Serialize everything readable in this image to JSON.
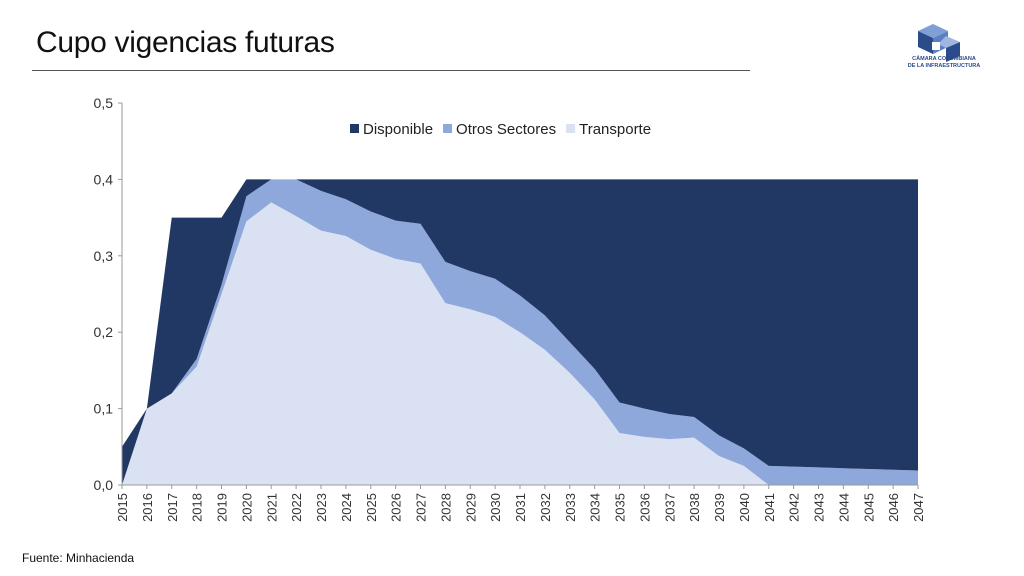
{
  "slide": {
    "title": "Cupo vigencias futuras",
    "source": "Fuente: Minhacienda",
    "logo": {
      "line1": "CÁMARA COLOMBIANA",
      "line2": "DE LA INFRAESTRUCTURA",
      "icon": "cube-logo-icon"
    }
  },
  "colors": {
    "disponible": "#213864",
    "otros_sectores": "#8ea8dc",
    "transporte": "#d9e1f2"
  },
  "chart_data": {
    "type": "area",
    "stacked": true,
    "categories": [
      "2015",
      "2016",
      "2017",
      "2018",
      "2019",
      "2020",
      "2021",
      "2022",
      "2023",
      "2024",
      "2025",
      "2026",
      "2027",
      "2028",
      "2029",
      "2030",
      "2031",
      "2032",
      "2033",
      "2034",
      "2035",
      "2036",
      "2037",
      "2038",
      "2039",
      "2040",
      "2041",
      "2042",
      "2043",
      "2044",
      "2045",
      "2046",
      "2047"
    ],
    "y_ticks": [
      "0,0",
      "0,1",
      "0,2",
      "0,3",
      "0,4",
      "0,5"
    ],
    "ylim": [
      0,
      0.5
    ],
    "legend_position": "top-center",
    "series": [
      {
        "name": "Transporte",
        "values": [
          0,
          0.1,
          0.12,
          0.155,
          0.25,
          0.345,
          0.37,
          0.352,
          0.333,
          0.326,
          0.308,
          0.296,
          0.29,
          0.238,
          0.23,
          0.22,
          0.2,
          0.177,
          0.147,
          0.112,
          0.068,
          0.063,
          0.06,
          0.062,
          0.038,
          0.025,
          0.0,
          0.0,
          0.0,
          0.0,
          0.0,
          0.0,
          0.0
        ]
      },
      {
        "name": "Otros Sectores",
        "values": [
          0,
          0.0,
          0.0,
          0.01,
          0.012,
          0.033,
          0.03,
          0.048,
          0.052,
          0.048,
          0.05,
          0.05,
          0.052,
          0.054,
          0.05,
          0.05,
          0.048,
          0.045,
          0.04,
          0.04,
          0.04,
          0.037,
          0.033,
          0.027,
          0.027,
          0.023,
          0.025,
          0.024,
          0.023,
          0.022,
          0.021,
          0.02,
          0.019
        ]
      },
      {
        "name": "Disponible",
        "values": [
          0.05,
          0.0,
          0.23,
          0.185,
          0.088,
          0.022,
          0.0,
          0.0,
          0.015,
          0.026,
          0.042,
          0.054,
          0.058,
          0.108,
          0.12,
          0.13,
          0.152,
          0.178,
          0.213,
          0.248,
          0.292,
          0.3,
          0.307,
          0.311,
          0.335,
          0.352,
          0.375,
          0.376,
          0.377,
          0.378,
          0.379,
          0.38,
          0.381
        ]
      }
    ]
  }
}
